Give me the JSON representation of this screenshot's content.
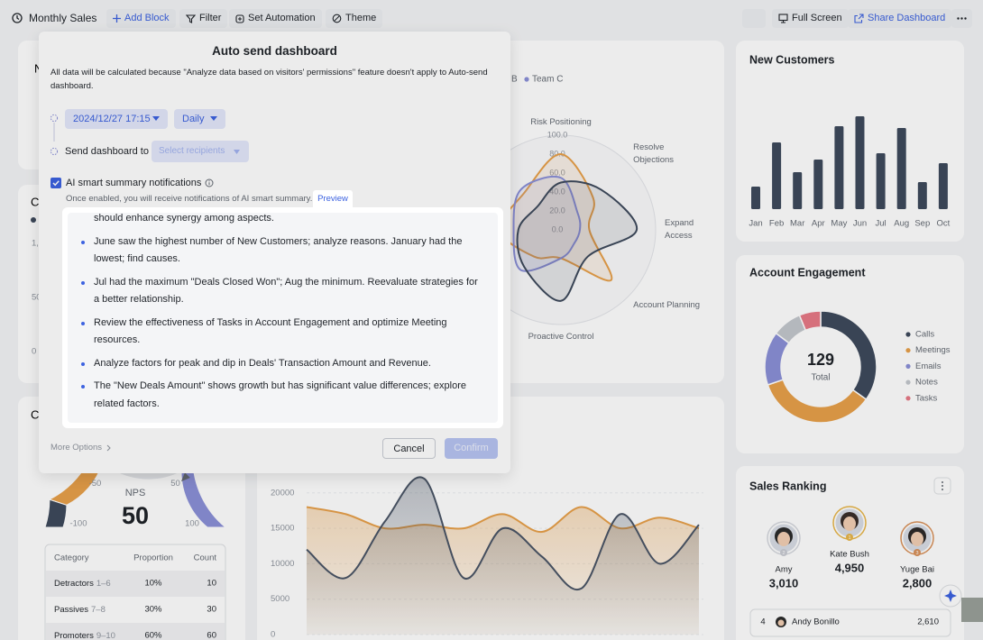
{
  "toolbar": {
    "title": "Monthly Sales",
    "add_block": "Add Block",
    "filter": "Filter",
    "set_automation": "Set Automation",
    "theme": "Theme",
    "full_screen": "Full Screen",
    "share_dashboard": "Share Dashboard"
  },
  "dashboard": {
    "card_title_fragments": [
      "N",
      "C",
      "C"
    ],
    "left_axis_fragments": [
      "1,",
      "50",
      "0"
    ],
    "radar": {
      "type": "radar",
      "legend_fragment": "B",
      "categories": [
        "Risk Positioning",
        "Resolve Objections",
        "Expand Access",
        "Account Planning",
        "Proactive Control",
        null,
        null,
        null
      ],
      "rlim": [
        0,
        100
      ],
      "rticks": [
        {
          "value": 0,
          "label": "0.0"
        },
        {
          "value": 20,
          "label": "20.0"
        },
        {
          "value": 40,
          "label": "40.0"
        },
        {
          "value": 60,
          "label": "60.0"
        },
        {
          "value": 80,
          "label": "80.0"
        },
        {
          "value": 100,
          "label": "100.0"
        }
      ],
      "series": [
        {
          "color": "#e8a04a",
          "values": [
            80,
            48,
            30,
            75,
            30,
            40,
            65,
            55
          ]
        },
        {
          "name": "Team C",
          "color": "#8b90d8",
          "values": [
            55,
            25,
            20,
            20,
            30,
            60,
            50,
            60
          ]
        },
        {
          "color": "#3e4a5c",
          "values": [
            50,
            60,
            80,
            40,
            75,
            55,
            45,
            35
          ]
        }
      ]
    },
    "trend": {
      "type": "line",
      "ylim": [
        0,
        25000
      ],
      "yticks": [
        0,
        5000,
        10000,
        15000,
        20000
      ],
      "series": [
        {
          "color": "#e8a04a",
          "values": [
            18000,
            17000,
            15000,
            15500,
            15000,
            17000,
            14500,
            18000,
            15000,
            16500,
            15000
          ]
        },
        {
          "color": "#4a5566",
          "values": [
            12000,
            8000,
            16000,
            22000,
            8000,
            15000,
            11000,
            6500,
            17000,
            10000,
            15500
          ]
        }
      ]
    },
    "new_customers": {
      "type": "bar",
      "title": "New Customers",
      "categories": [
        "Jan",
        "Feb",
        "Mar",
        "Apr",
        "May",
        "Jun",
        "Jul",
        "Aug",
        "Sep",
        "Oct"
      ],
      "values": [
        25,
        74,
        41,
        55,
        92,
        103,
        62,
        90,
        30,
        51
      ],
      "color": "#3e4a5c"
    },
    "account_engagement": {
      "type": "pie",
      "title": "Account Engagement",
      "total_value": 129,
      "total_label": "Total",
      "series": [
        {
          "name": "Calls",
          "value": 45,
          "color": "#3e4a5c"
        },
        {
          "name": "Meetings",
          "value": 45,
          "color": "#e8a04a"
        },
        {
          "name": "Emails",
          "value": 20,
          "color": "#8b90d8"
        },
        {
          "name": "Notes",
          "value": 11,
          "color": "#c3c7cd"
        },
        {
          "name": "Tasks",
          "value": 8,
          "color": "#e87a86"
        }
      ]
    },
    "nps": {
      "type": "gauge",
      "label": "NPS",
      "score": 50,
      "xlim": [
        -100,
        100
      ],
      "xticks": [
        -100,
        -50,
        50,
        100
      ],
      "table": {
        "header": [
          "Category",
          "Proportion",
          "Count"
        ],
        "rows": [
          {
            "category": "Detractors",
            "range": "1–6",
            "proportion": "10%",
            "count": 10
          },
          {
            "category": "Passives",
            "range": "7–8",
            "proportion": "30%",
            "count": 30
          },
          {
            "category": "Promoters",
            "range": "9–10",
            "proportion": "60%",
            "count": 60
          }
        ]
      }
    },
    "sales_ranking": {
      "title": "Sales Ranking",
      "podium": [
        {
          "name": "Amy",
          "value": "3,010",
          "rank": 2
        },
        {
          "name": "Kate Bush",
          "value": "4,950",
          "rank": 1
        },
        {
          "name": "Yuge Bai",
          "value": "2,800",
          "rank": 3
        }
      ],
      "list": [
        {
          "rank": 4,
          "name": "Andy Bonillo",
          "value": "2,610"
        }
      ]
    }
  },
  "modal": {
    "title": "Auto send dashboard",
    "note": "All data will be calculated because \"Analyze data based on visitors' permissions\" feature doesn't apply to Auto-send dashboard.",
    "datetime": "2024/12/27 17:15",
    "frequency": "Daily",
    "send_label": "Send dashboard to",
    "recipients_placeholder": "Select recipients",
    "ai_label": "AI smart summary notifications",
    "ai_hint": "Once enabled, you will receive notifications of AI smart summary.",
    "preview": "Preview",
    "summary_continuation": "should enhance synergy among aspects.",
    "summary": [
      "June saw the highest number of New Customers; analyze reasons. January had the lowest; find causes.",
      "Jul had the maximum \"Deals Closed Won\"; Aug the minimum. Reevaluate strategies for a better relationship.",
      "Review the effectiveness of Tasks in Account Engagement and optimize Meeting resources.",
      "Analyze factors for peak and dip in Deals' Transaction Amount and Revenue.",
      "The \"New Deals Amount\" shows growth but has significant value differences; explore related factors."
    ],
    "more_options": "More Options",
    "cancel": "Cancel",
    "confirm": "Confirm"
  }
}
